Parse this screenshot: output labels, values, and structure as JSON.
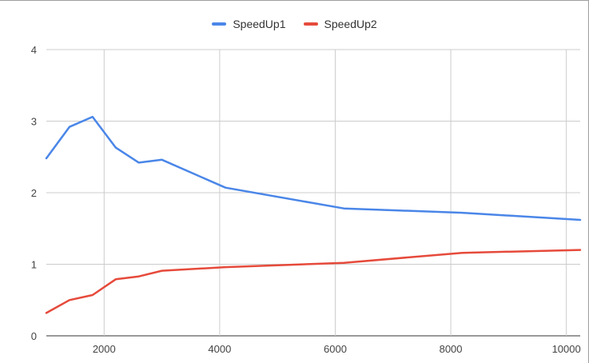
{
  "chart_data": {
    "type": "line",
    "title": "",
    "xlabel": "",
    "ylabel": "",
    "xlim": [
      1000,
      10240
    ],
    "ylim": [
      0,
      4
    ],
    "xticks": [
      2000,
      4000,
      6000,
      8000,
      10000
    ],
    "yticks": [
      0,
      1,
      2,
      3,
      4
    ],
    "grid": true,
    "legend_position": "top",
    "series": [
      {
        "name": "SpeedUp1",
        "color": "#4a86e8",
        "x": [
          1000,
          1400,
          1800,
          2200,
          2600,
          3000,
          4100,
          6150,
          8200,
          10240
        ],
        "y": [
          2.48,
          2.92,
          3.06,
          2.63,
          2.42,
          2.46,
          2.07,
          1.78,
          1.72,
          1.62
        ]
      },
      {
        "name": "SpeedUp2",
        "color": "#e64a3b",
        "x": [
          1000,
          1400,
          1800,
          2200,
          2600,
          3000,
          4100,
          6150,
          8200,
          10240
        ],
        "y": [
          0.32,
          0.5,
          0.57,
          0.79,
          0.83,
          0.91,
          0.96,
          1.02,
          1.16,
          1.2
        ]
      }
    ]
  }
}
